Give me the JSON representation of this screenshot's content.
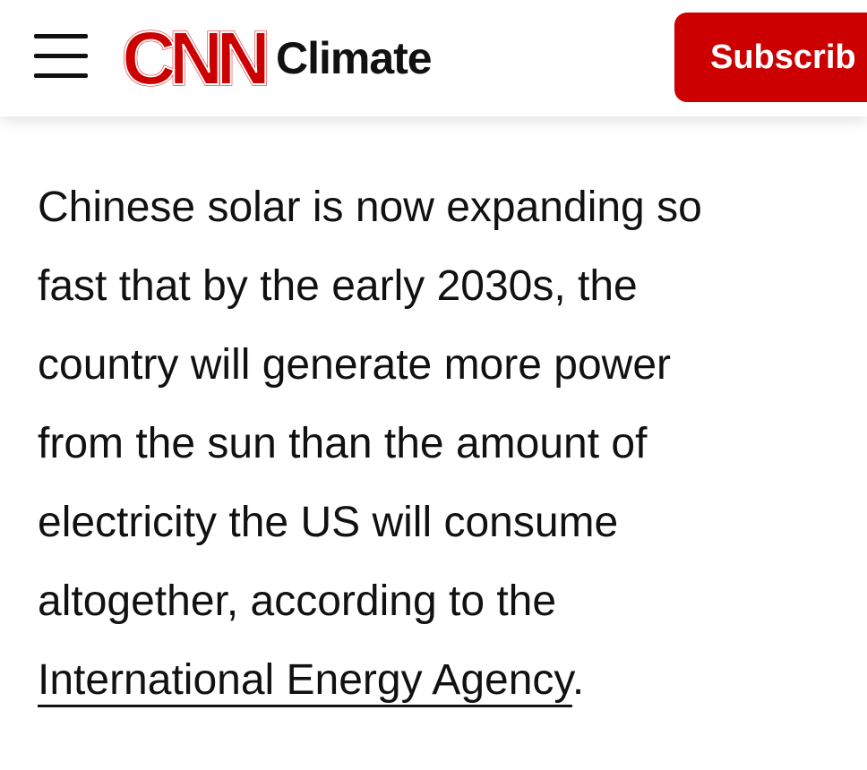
{
  "header": {
    "logo": "CNN",
    "section": "Climate",
    "subscribe": "Subscrib"
  },
  "article": {
    "lines": [
      "Chinese solar is now expanding so",
      "fast that by the early 2030s, the",
      "country will generate more power",
      "from the sun than the amount of",
      "electricity the US will consume",
      "altogether, according to the"
    ],
    "link": "International Energy Agency",
    "end": "."
  }
}
